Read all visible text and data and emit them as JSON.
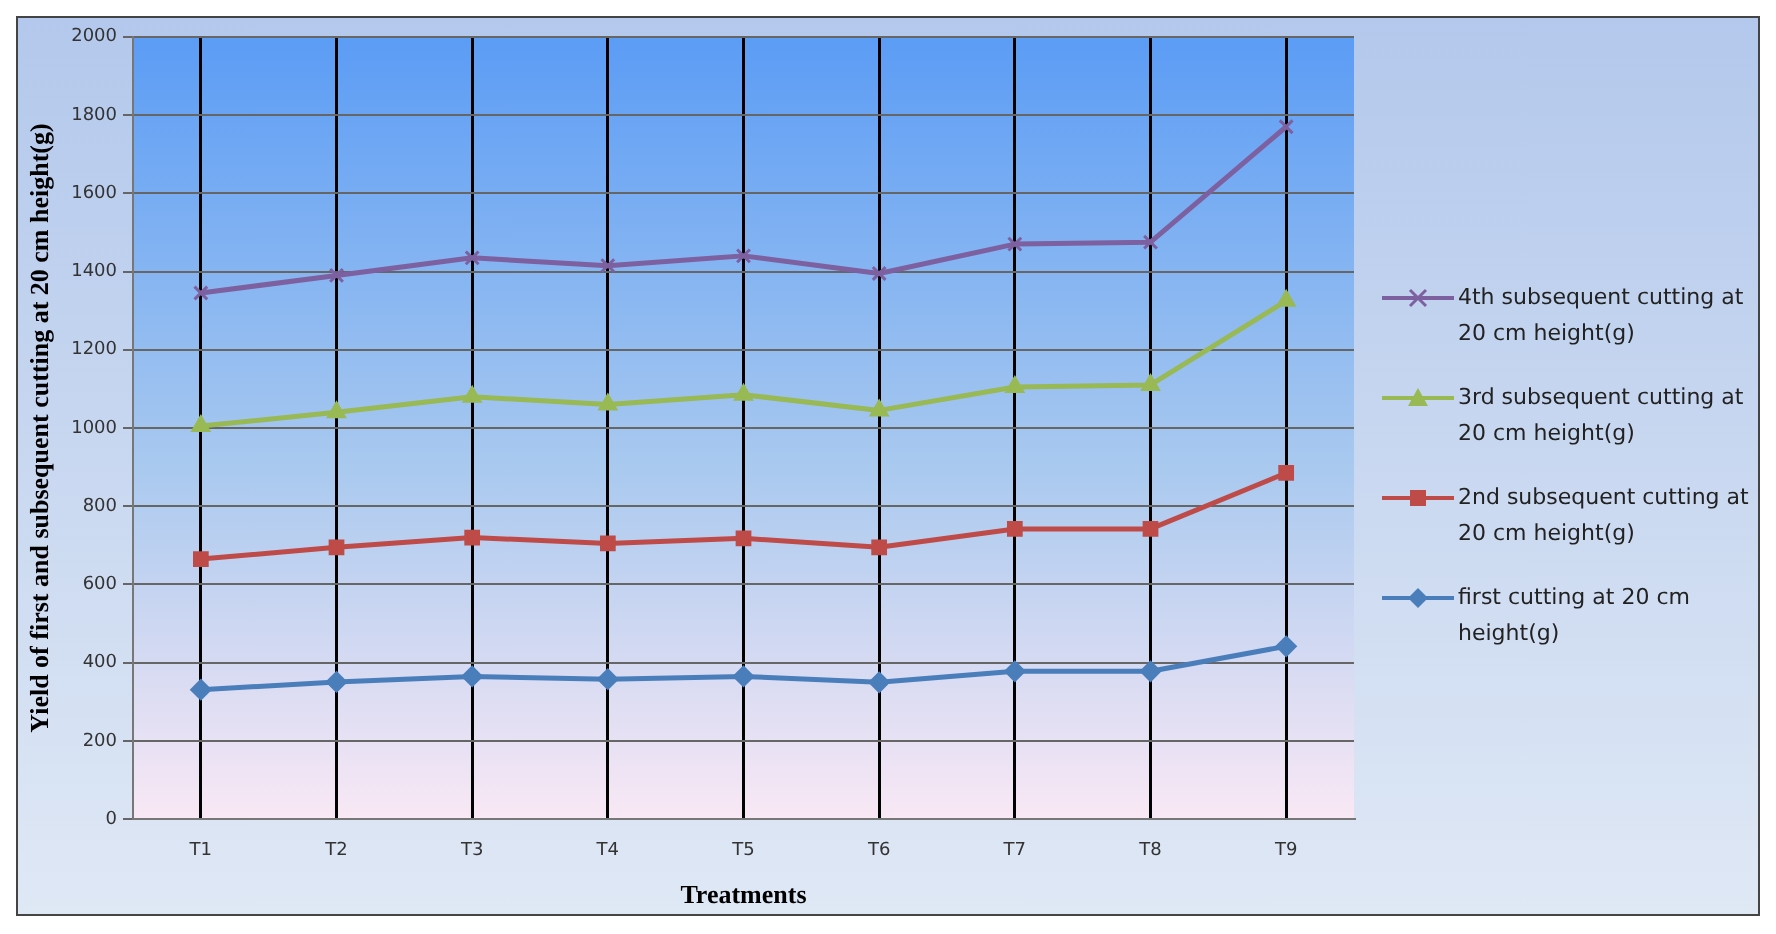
{
  "chart_data": {
    "type": "line",
    "xlabel": "Treatments",
    "ylabel": "Yield of first and subsequent cutting at 20 cm height(g)",
    "categories": [
      "T1",
      "T2",
      "T3",
      "T4",
      "T5",
      "T6",
      "T7",
      "T8",
      "T9"
    ],
    "ylim": [
      0,
      2000
    ],
    "yticks": [
      0,
      200,
      400,
      600,
      800,
      1000,
      1200,
      1400,
      1600,
      1800,
      2000
    ],
    "grid": true,
    "legend": "right",
    "line_style": "solid",
    "series": [
      {
        "name": "first cutting at 20 cm height(g)",
        "color": "#4a7ebb",
        "marker": "diamond",
        "values": [
          331,
          351,
          365,
          358,
          365,
          350,
          378,
          378,
          442
        ]
      },
      {
        "name": "2nd subsequent cutting at 20 cm height(g)",
        "color": "#be4b48",
        "marker": "square",
        "values": [
          665,
          695,
          720,
          705,
          718,
          695,
          742,
          742,
          885
        ]
      },
      {
        "name": "3rd subsequent cutting at 20 cm height(g)",
        "color": "#98b954",
        "marker": "triangle",
        "values": [
          1005,
          1040,
          1080,
          1060,
          1085,
          1045,
          1105,
          1110,
          1325
        ]
      },
      {
        "name": "4th subsequent cutting at 20 cm height(g)",
        "color": "#7d60a0",
        "marker": "cross",
        "values": [
          1345,
          1390,
          1435,
          1415,
          1440,
          1395,
          1470,
          1475,
          1770
        ]
      }
    ]
  }
}
